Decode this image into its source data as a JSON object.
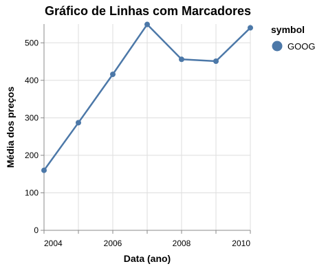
{
  "chart_data": {
    "type": "line",
    "title": "Gráfico de Linhas com Marcadores",
    "xlabel": "Data (ano)",
    "ylabel": "Média dos preços",
    "x_ticks": [
      "2004",
      "2006",
      "2008",
      "2010"
    ],
    "y_ticks": [
      0,
      100,
      200,
      300,
      400,
      500
    ],
    "xlim": [
      2004,
      2010
    ],
    "ylim": [
      0,
      550
    ],
    "grid": true,
    "markers": true,
    "legend": {
      "title": "symbol",
      "position": "right"
    },
    "series": [
      {
        "name": "GOOG",
        "color": "#4c78a8",
        "x": [
          "2004",
          "2005",
          "2006",
          "2007",
          "2008",
          "2009",
          "2010"
        ],
        "values": [
          160,
          287,
          416,
          549,
          456,
          451,
          540
        ]
      }
    ]
  }
}
